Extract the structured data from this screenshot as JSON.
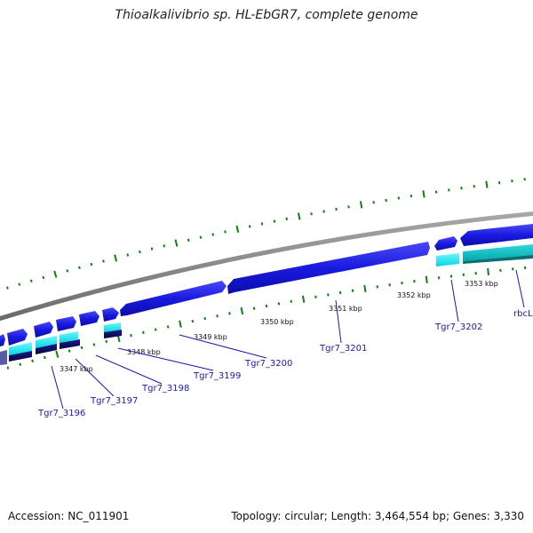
{
  "title": "Thioalkalivibrio sp. HL-EbGR7, complete genome",
  "footer": {
    "accession": "Accession: NC_011901",
    "topology": "Topology: circular; Length: 3,464,554 bp; Genes: 3,330"
  },
  "colors": {
    "backbone": "#8a8a8a",
    "cds_forward": "#1515d8",
    "cds_forward_light": "#3c3cf2",
    "rna_cyan": "#00e5ef",
    "rna_teal": "#00c3c9",
    "reverse_dark": "#0c0c60",
    "tick_green": "#108010",
    "label_blue": "#1a1aa8"
  },
  "kbp_labels": [
    "3347 kbp",
    "3348 kbp",
    "3349 kbp",
    "3350 kbp",
    "3351 kbp",
    "3352 kbp",
    "3353 kbp"
  ],
  "gene_labels": [
    "Tgr7_3196",
    "Tgr7_3197",
    "Tgr7_3198",
    "Tgr7_3199",
    "Tgr7_3200",
    "Tgr7_3201",
    "Tgr7_3202",
    "rbcL"
  ]
}
